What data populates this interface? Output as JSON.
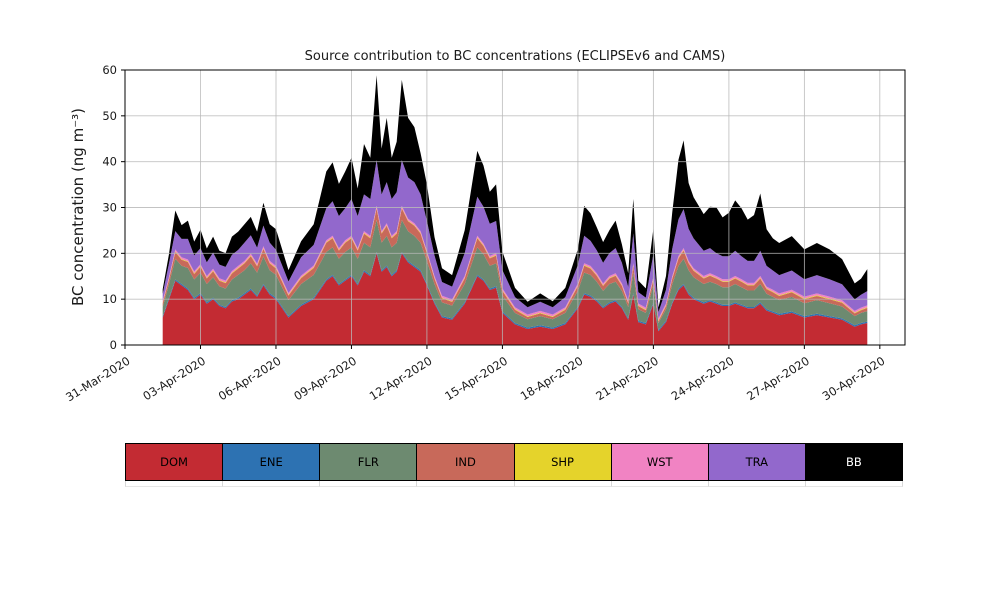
{
  "page": {
    "background": "#ffffff"
  },
  "chart_data": {
    "type": "area",
    "stacked": true,
    "title": "Source contribution to BC concentrations (ECLIPSEv6 and CAMS)",
    "xlabel": "",
    "ylabel": "BC concentration (ng m⁻³)",
    "ylim": [
      0,
      60
    ],
    "yticks": [
      0,
      10,
      20,
      30,
      40,
      50,
      60
    ],
    "xlim": [
      0,
      31
    ],
    "x_unit": "days since 31-Mar-2020",
    "grid": true,
    "legend_position": "bottom",
    "xticks": [
      {
        "pos": 0,
        "label": "31-Mar-2020"
      },
      {
        "pos": 3,
        "label": "03-Apr-2020"
      },
      {
        "pos": 6,
        "label": "06-Apr-2020"
      },
      {
        "pos": 9,
        "label": "09-Apr-2020"
      },
      {
        "pos": 12,
        "label": "12-Apr-2020"
      },
      {
        "pos": 15,
        "label": "15-Apr-2020"
      },
      {
        "pos": 18,
        "label": "18-Apr-2020"
      },
      {
        "pos": 21,
        "label": "21-Apr-2020"
      },
      {
        "pos": 24,
        "label": "24-Apr-2020"
      },
      {
        "pos": 27,
        "label": "27-Apr-2020"
      },
      {
        "pos": 30,
        "label": "30-Apr-2020"
      }
    ],
    "x": [
      1.5,
      1.75,
      2,
      2.25,
      2.5,
      2.75,
      3,
      3.25,
      3.5,
      3.75,
      4,
      4.25,
      4.5,
      4.75,
      5,
      5.25,
      5.5,
      5.75,
      6,
      6.5,
      7,
      7.5,
      8,
      8.25,
      8.5,
      8.75,
      9,
      9.25,
      9.5,
      9.75,
      10,
      10.2,
      10.4,
      10.6,
      10.8,
      11,
      11.25,
      11.5,
      11.75,
      12,
      12.3,
      12.6,
      13,
      13.5,
      14,
      14.25,
      14.5,
      14.75,
      15,
      15.5,
      16,
      16.5,
      17,
      17.5,
      18,
      18.25,
      18.5,
      18.75,
      19,
      19.25,
      19.5,
      19.75,
      20,
      20.2,
      20.4,
      20.7,
      21,
      21.2,
      21.5,
      21.75,
      22,
      22.2,
      22.4,
      22.6,
      23,
      23.25,
      23.5,
      23.75,
      24,
      24.25,
      24.5,
      24.75,
      25,
      25.25,
      25.5,
      25.75,
      26,
      26.5,
      27,
      27.5,
      28,
      28.5,
      29,
      29.25,
      29.5
    ],
    "series": [
      {
        "name": "DOM",
        "color": "#c32b33",
        "values": [
          6,
          10,
          14,
          13,
          12,
          10,
          11,
          9,
          10,
          8.5,
          8,
          9.5,
          10,
          11,
          12,
          10.5,
          13,
          11,
          10,
          6,
          8.5,
          10,
          14,
          15,
          13,
          14,
          15,
          13,
          16,
          15,
          20,
          16,
          17,
          15,
          16,
          20,
          18,
          17,
          16,
          13,
          9,
          6,
          5.5,
          9,
          15,
          14,
          12,
          12.5,
          7,
          4.5,
          3.5,
          4,
          3.5,
          4.5,
          8,
          11,
          10.5,
          9.5,
          8,
          9,
          9.5,
          8,
          5.5,
          11,
          5,
          4.5,
          9,
          3,
          5,
          9,
          12,
          13,
          11,
          10,
          9,
          9.5,
          9,
          8.5,
          8.5,
          9,
          8.5,
          8,
          8,
          9,
          7.5,
          7,
          6.5,
          7,
          6,
          6.5,
          6,
          5.5,
          4,
          4.5,
          4.8
        ]
      },
      {
        "name": "ENE",
        "color": "#2d72b2",
        "constant": 0.3
      },
      {
        "name": "FLR",
        "color": "#6d8a70",
        "values": [
          2,
          3,
          4.5,
          4,
          4.5,
          4,
          4.5,
          4,
          4.5,
          4,
          4,
          4.5,
          5,
          5,
          5.5,
          5,
          6,
          5,
          5,
          3.5,
          4.5,
          5,
          6,
          6,
          5.5,
          6,
          6,
          5.5,
          6,
          6,
          7,
          6,
          6.5,
          6,
          6,
          7,
          6.5,
          6.5,
          6,
          5,
          4,
          3,
          2.8,
          4,
          6,
          5.5,
          5,
          5,
          3.5,
          2.2,
          1.8,
          2,
          1.8,
          2.2,
          3.5,
          4.5,
          4.5,
          4,
          3.5,
          4,
          4,
          3.5,
          2.5,
          4.5,
          2.5,
          2.2,
          3.8,
          1.5,
          2.5,
          4,
          5,
          5.5,
          5,
          4.5,
          4,
          4,
          4,
          3.8,
          3.8,
          4,
          3.8,
          3.6,
          3.6,
          4,
          3.4,
          3.2,
          3,
          3.2,
          2.8,
          3,
          2.8,
          2.6,
          2,
          2.2,
          2.3
        ]
      },
      {
        "name": "IND",
        "color": "#c8695a",
        "values": [
          0.8,
          1,
          1.5,
          1.3,
          1.3,
          1.2,
          1.3,
          1.2,
          1.3,
          1.2,
          1.2,
          1.3,
          1.4,
          1.5,
          1.6,
          1.4,
          1.7,
          1.5,
          1.4,
          1,
          1.3,
          1.5,
          2,
          2,
          1.8,
          2,
          2,
          1.8,
          2,
          2,
          2.5,
          2,
          2.2,
          2,
          2,
          2.5,
          2.2,
          2.2,
          2,
          1.7,
          1.2,
          0.9,
          0.8,
          1.2,
          2,
          1.8,
          1.6,
          1.7,
          1,
          0.7,
          0.5,
          0.6,
          0.5,
          0.7,
          1.1,
          1.5,
          1.4,
          1.3,
          1.1,
          1.2,
          1.3,
          1.1,
          0.8,
          1.5,
          0.7,
          0.6,
          1.2,
          0.4,
          0.7,
          1.2,
          1.6,
          1.8,
          1.5,
          1.4,
          1.2,
          1.3,
          1.2,
          1.2,
          1.2,
          1.2,
          1.2,
          1.1,
          1.1,
          1.2,
          1,
          1,
          0.9,
          1,
          0.9,
          0.9,
          0.9,
          0.8,
          0.6,
          0.6,
          0.7
        ]
      },
      {
        "name": "SHP",
        "color": "#e5d32b",
        "constant": 0.15
      },
      {
        "name": "WST",
        "color": "#f183c3",
        "constant": 0.4
      },
      {
        "name": "TRA",
        "color": "#9268cc",
        "values": [
          1.5,
          3,
          4,
          4,
          4.5,
          3.5,
          3.5,
          3,
          3.5,
          3,
          3,
          3.5,
          3.5,
          4,
          4,
          3.5,
          4.5,
          4,
          3.5,
          2.5,
          4,
          4.5,
          7,
          7.5,
          7,
          7,
          8,
          7,
          8,
          8,
          10,
          8,
          9,
          8,
          8.5,
          10,
          9,
          9,
          8,
          6.5,
          4.5,
          3,
          2.8,
          5,
          8.5,
          8,
          7,
          7,
          4,
          2.2,
          1.6,
          2,
          1.6,
          2.2,
          4,
          6,
          5.5,
          5,
          4.5,
          5,
          5.5,
          4.5,
          3,
          6.5,
          2.5,
          2.2,
          5,
          1.4,
          3,
          6,
          8,
          8.5,
          7,
          6.5,
          5.5,
          5.5,
          5,
          5,
          5,
          5.5,
          5,
          4.8,
          4.8,
          5.5,
          4.5,
          4.2,
          4,
          4.2,
          3.8,
          4,
          3.8,
          3.5,
          2.5,
          2.8,
          3.1
        ]
      },
      {
        "name": "BB",
        "color": "#000000",
        "values": [
          1,
          2,
          4.5,
          3,
          4,
          3,
          4,
          3,
          3.5,
          3,
          3,
          4,
          4,
          4,
          4,
          3.5,
          5,
          4,
          4.5,
          2.5,
          3.5,
          4.5,
          8,
          8.5,
          7,
          8,
          9,
          6,
          11,
          9,
          18.5,
          10,
          14,
          9,
          11,
          17.5,
          13,
          12,
          9,
          8,
          4,
          3,
          2.5,
          5,
          10,
          9,
          7,
          8,
          4,
          2,
          1.2,
          1.8,
          1.3,
          2,
          3.5,
          6.5,
          6,
          5,
          4.5,
          5,
          6,
          4,
          3,
          7.5,
          2.5,
          2,
          5.5,
          1,
          3,
          8,
          13,
          15,
          10,
          9,
          8,
          9,
          10,
          8.5,
          9.5,
          11,
          10.5,
          9,
          10,
          12.5,
          8,
          7,
          7,
          7.5,
          6.5,
          7,
          6.5,
          5.5,
          3.5,
          3.5,
          4.8
        ]
      }
    ]
  }
}
